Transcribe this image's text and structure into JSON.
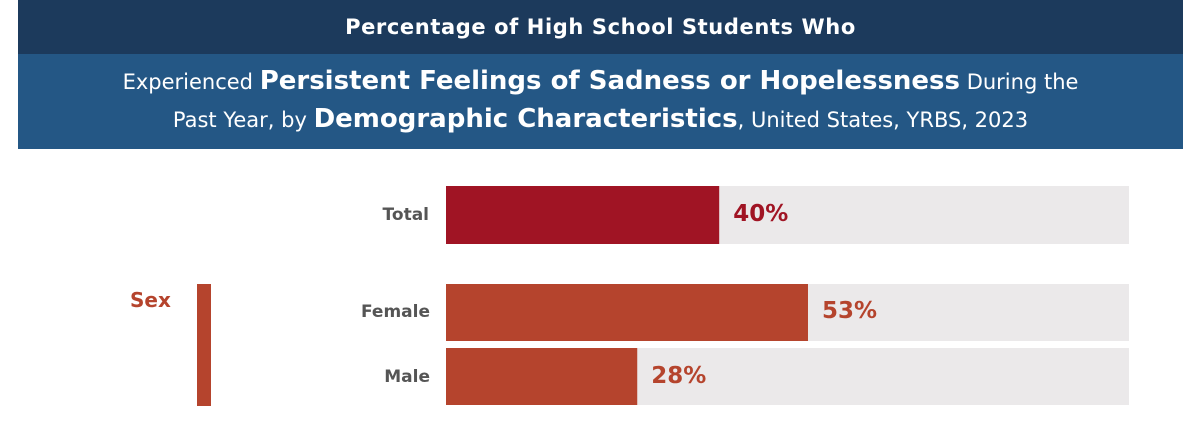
{
  "header": {
    "line1": "Percentage of High School Students Who",
    "line2_parts": [
      "Experienced ",
      "Persistent Feelings of Sadness or Hopelessness",
      " During the"
    ],
    "line3_parts": [
      "Past Year, by ",
      "Demographic Characteristics",
      ", United States, YRBS, 2023"
    ]
  },
  "chart_data": {
    "type": "bar",
    "orientation": "horizontal",
    "title": "Percentage of High School Students Who Experienced Persistent Feelings of Sadness or Hopelessness During the Past Year, by Demographic Characteristics, United States, YRBS, 2023",
    "xlim": [
      0,
      100
    ],
    "categories": [
      "Total",
      "Female",
      "Male"
    ],
    "values": [
      40,
      53,
      28
    ],
    "value_labels": [
      "40%",
      "53%",
      "28%"
    ],
    "groups": [
      {
        "name": "",
        "members": [
          "Total"
        ]
      },
      {
        "name": "Sex",
        "members": [
          "Female",
          "Male"
        ]
      }
    ]
  },
  "colors": {
    "header_top": "#1c3a5c",
    "header_bottom": "#245785",
    "total": "#a01424",
    "sex": "#b5442d",
    "track": "#ebe9ea"
  }
}
